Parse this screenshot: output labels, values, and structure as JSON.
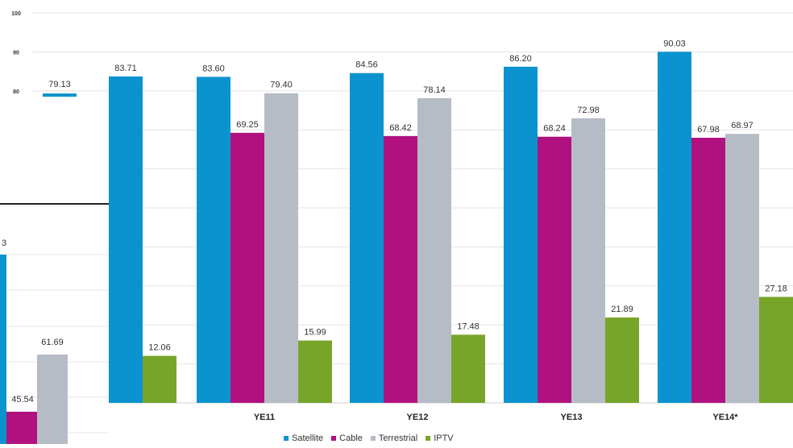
{
  "chart_data": {
    "type": "bar",
    "categories": [
      "",
      "YE11",
      "YE12",
      "YE13",
      "YE14*"
    ],
    "series": [
      {
        "name": "Satellite",
        "values": [
          83.71,
          83.6,
          84.56,
          86.2,
          90.03
        ],
        "color": "#0b93d0"
      },
      {
        "name": "Cable",
        "values": [
          null,
          69.25,
          68.42,
          68.24,
          67.98
        ],
        "color": "#b0117e"
      },
      {
        "name": "Terrestrial",
        "values": [
          null,
          79.4,
          78.14,
          72.98,
          68.97
        ],
        "color": "#b5bcc6"
      },
      {
        "name": "IPTV",
        "values": [
          12.06,
          15.99,
          17.48,
          21.89,
          27.18
        ],
        "color": "#77a52a"
      }
    ],
    "y_ticks": [
      "80",
      "90",
      "100"
    ],
    "ylim": [
      0,
      100
    ],
    "grid": true,
    "legend": "bottom",
    "inset": {
      "visible_labels": [
        "79.13",
        "3",
        "61.69",
        "45.54"
      ]
    }
  }
}
